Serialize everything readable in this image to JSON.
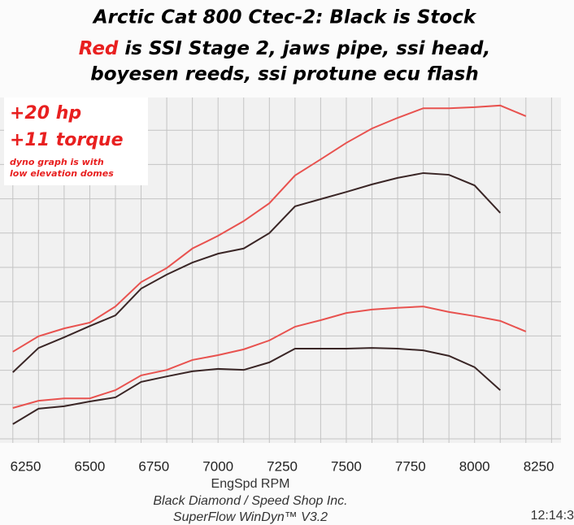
{
  "chart_data": {
    "type": "line",
    "title": {
      "line1": "Arctic Cat 800 Ctec-2:   Black is Stock",
      "line2_highlight": "Red",
      "line2": " is SSI Stage 2, jaws pipe, ssi head,",
      "line3": "boyesen reeds, ssi protune ecu flash"
    },
    "annotations": [
      "+20 hp",
      "+11 torque",
      "dyno graph is with",
      "low elevation domes"
    ],
    "xlabel": "EngSpd RPM",
    "footer": [
      "Black Diamond / Speed Shop Inc.",
      "SuperFlow WinDyn™ V3.2",
      "12:14:3"
    ],
    "x": [
      6200,
      6300,
      6400,
      6500,
      6600,
      6700,
      6800,
      6900,
      7000,
      7100,
      7200,
      7300,
      7400,
      7500,
      7600,
      7700,
      7800,
      7900,
      8000,
      8100,
      8200
    ],
    "series": [
      {
        "color": "#e8524f",
        "values": [
          25.4,
          29.9,
          32.2,
          33.9,
          38.6,
          45.7,
          49.8,
          55.5,
          59.2,
          63.5,
          68.7,
          76.8,
          81.5,
          86.3,
          90.5,
          93.6,
          96.4,
          96.4,
          96.7,
          97.2,
          94.1
        ]
      },
      {
        "color": "#3a2626",
        "values": [
          19.4,
          26.5,
          29.6,
          32.9,
          36.0,
          43.8,
          47.9,
          51.4,
          54.0,
          55.5,
          60.0,
          67.8,
          69.9,
          72.0,
          74.2,
          76.1,
          77.5,
          77.0,
          73.9,
          65.9,
          null
        ]
      },
      {
        "color": "#e8524f",
        "values": [
          9.0,
          11.1,
          11.8,
          11.8,
          14.2,
          18.5,
          20.1,
          23.0,
          24.4,
          26.1,
          28.7,
          32.7,
          34.6,
          36.7,
          37.7,
          38.2,
          38.6,
          37.0,
          35.8,
          34.4,
          31.3
        ]
      },
      {
        "color": "#3a2626",
        "values": [
          4.3,
          8.8,
          9.5,
          10.9,
          12.1,
          16.6,
          18.2,
          19.7,
          20.4,
          20.1,
          22.3,
          26.3,
          26.3,
          26.3,
          26.5,
          26.3,
          25.8,
          24.2,
          20.9,
          14.2,
          null
        ]
      }
    ],
    "xlim": [
      6150,
      8340
    ],
    "ylim": [
      0,
      100
    ],
    "xticks": [
      6250,
      6500,
      6750,
      7000,
      7250,
      7500,
      7750,
      8000,
      8250
    ],
    "xgrid": [
      6200,
      6300,
      6400,
      6500,
      6600,
      6700,
      6800,
      6900,
      7000,
      7100,
      7200,
      7300,
      7400,
      7500,
      7600,
      7700,
      7800,
      7900,
      8000,
      8100,
      8200,
      8300
    ],
    "ygrid": [
      0,
      10,
      20,
      30,
      40,
      50,
      60,
      70,
      80,
      90,
      100
    ],
    "grid": true
  }
}
